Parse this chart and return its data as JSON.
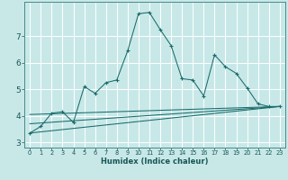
{
  "xlabel": "Humidex (Indice chaleur)",
  "x_ticks": [
    0,
    1,
    2,
    3,
    4,
    5,
    6,
    7,
    8,
    9,
    10,
    11,
    12,
    13,
    14,
    15,
    16,
    17,
    18,
    19,
    20,
    21,
    22,
    23
  ],
  "ylim": [
    2.8,
    8.3
  ],
  "xlim": [
    -0.5,
    23.5
  ],
  "y_ticks": [
    3,
    4,
    5,
    6,
    7
  ],
  "bg_color": "#c8e8e8",
  "grid_color": "#a8d8d8",
  "line_color": "#1a6b6b",
  "series": {
    "line1": {
      "x": [
        0,
        1,
        2,
        3,
        4,
        5,
        6,
        7,
        8,
        9,
        10,
        11,
        12,
        13,
        14,
        15,
        16,
        17,
        18,
        19,
        20,
        21,
        22,
        23
      ],
      "y": [
        3.35,
        3.6,
        4.1,
        4.15,
        3.75,
        5.1,
        4.85,
        5.25,
        5.35,
        6.45,
        7.85,
        7.9,
        7.25,
        6.65,
        5.4,
        5.35,
        4.75,
        6.3,
        5.85,
        5.6,
        5.05,
        4.45,
        4.35,
        4.35
      ]
    },
    "line2": {
      "x": [
        0,
        23
      ],
      "y": [
        3.35,
        4.35
      ]
    },
    "line3": {
      "x": [
        0,
        23
      ],
      "y": [
        3.7,
        4.35
      ]
    },
    "line4": {
      "x": [
        0,
        23
      ],
      "y": [
        4.05,
        4.35
      ]
    }
  }
}
